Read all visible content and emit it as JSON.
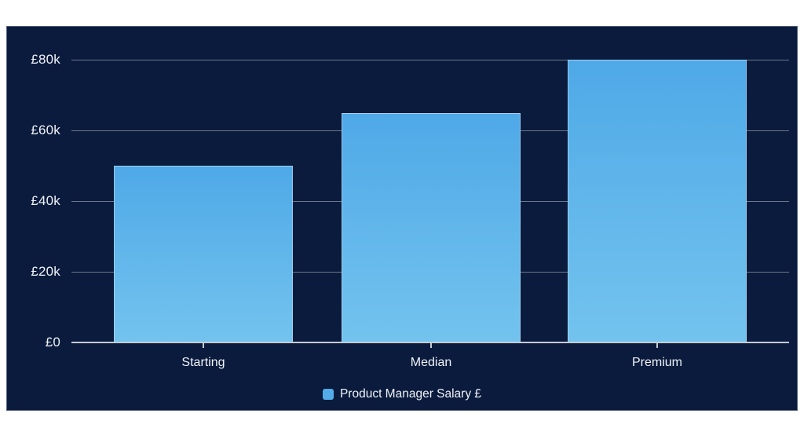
{
  "chart_data": {
    "type": "bar",
    "categories": [
      "Starting",
      "Median",
      "Premium"
    ],
    "values": [
      50000,
      65000,
      80000
    ],
    "series": [
      {
        "name": "Product Manager Salary £",
        "values": [
          50000,
          65000,
          80000
        ]
      }
    ],
    "title": "",
    "xlabel": "",
    "ylabel": "",
    "ylim": [
      0,
      80000
    ],
    "y_tick_labels": [
      "£80k",
      "£60k",
      "£40k",
      "£20k",
      "£0"
    ],
    "grid": true,
    "legend": {
      "position": "bottom",
      "labels": [
        "Product Manager Salary £"
      ]
    }
  },
  "colors": {
    "page-bg": "#ffffff",
    "panel-bg": "#0a1b3d",
    "bar-top": "#4fa9e7",
    "bar-bottom": "#73c3ee",
    "legend-marker": "#53abe9",
    "gridline": "#6e7787",
    "axis-line": "#c6cbd3",
    "text": "#f0f3f7"
  }
}
